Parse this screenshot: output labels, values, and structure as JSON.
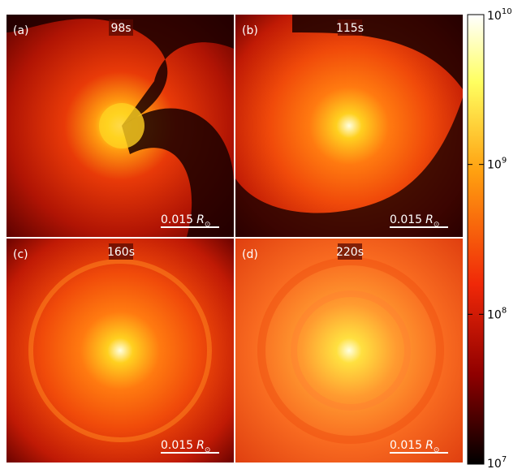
{
  "panels": [
    {
      "label": "(a)",
      "time": "98s",
      "scale_bar": {
        "number": "0.015",
        "symbol": "R",
        "subscript": "⊙"
      }
    },
    {
      "label": "(b)",
      "time": "115s",
      "scale_bar": {
        "number": "0.015",
        "symbol": "R",
        "subscript": "⊙"
      }
    },
    {
      "label": "(c)",
      "time": "160s",
      "scale_bar": {
        "number": "0.015",
        "symbol": "R",
        "subscript": "⊙"
      }
    },
    {
      "label": "(d)",
      "time": "220s",
      "scale_bar": {
        "number": "0.015",
        "symbol": "R",
        "subscript": "⊙"
      }
    }
  ],
  "colorbar": {
    "scale": "log",
    "lim": [
      10000000,
      10000000000
    ],
    "ticks": [
      {
        "value": 10000000,
        "base": "10",
        "exponent": "7"
      },
      {
        "value": 100000000,
        "base": "10",
        "exponent": "8"
      },
      {
        "value": 1000000000,
        "base": "10",
        "exponent": "9"
      },
      {
        "value": 10000000000,
        "base": "10",
        "exponent": "10"
      }
    ]
  }
}
